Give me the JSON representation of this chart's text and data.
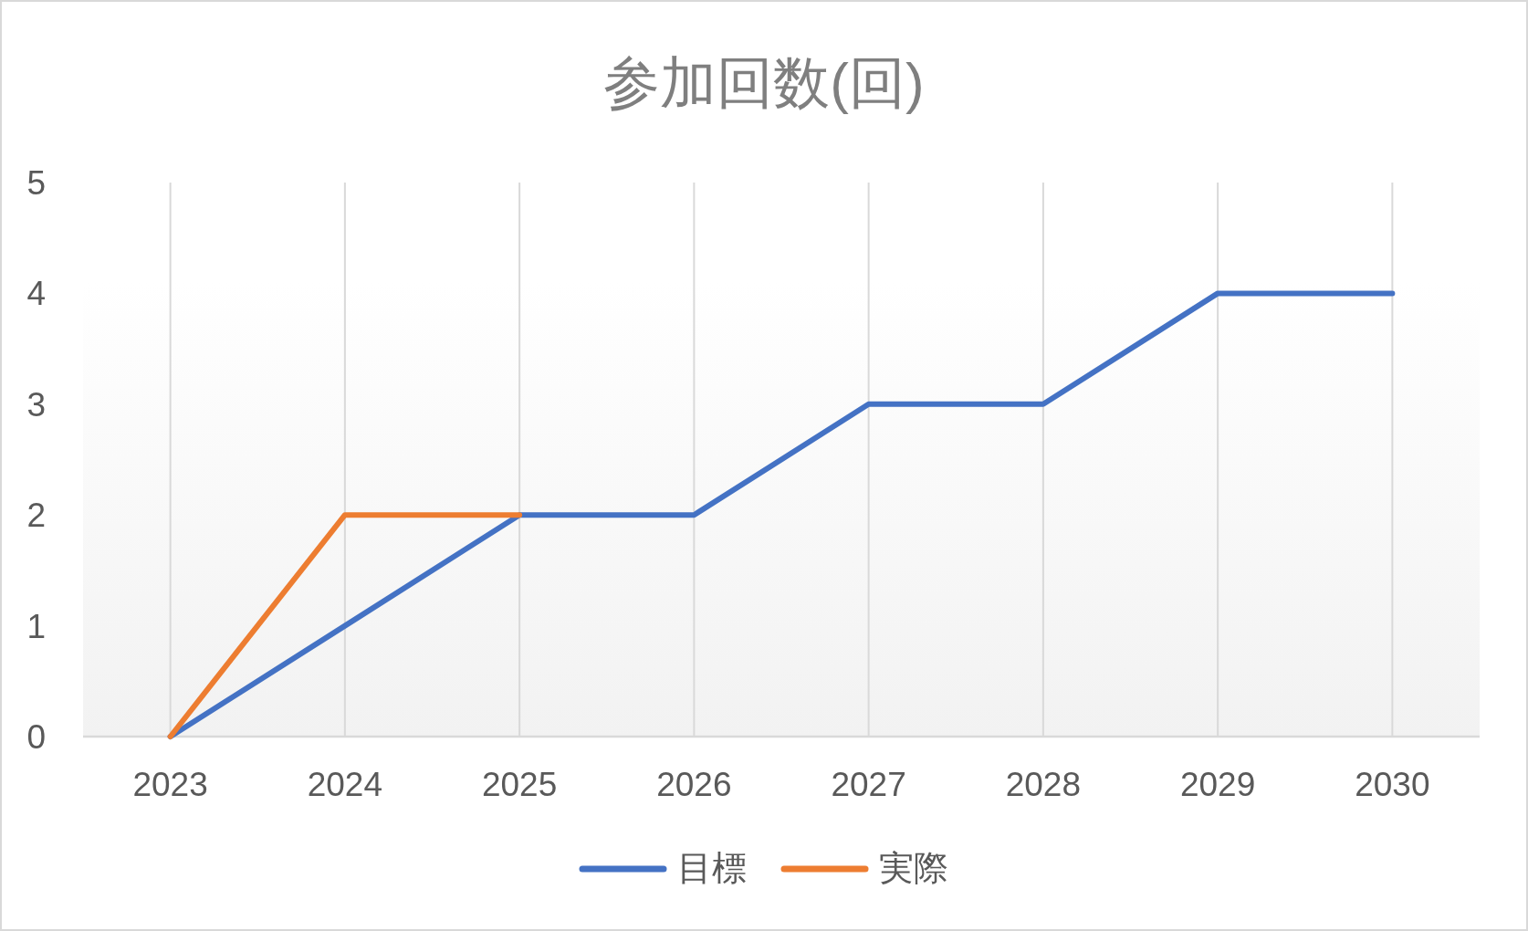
{
  "chart_data": {
    "type": "line",
    "title": "参加回数(回)",
    "categories": [
      "2023",
      "2024",
      "2025",
      "2026",
      "2027",
      "2028",
      "2029",
      "2030"
    ],
    "series": [
      {
        "name": "目標",
        "color": "#4472c4",
        "values": [
          0,
          1,
          2,
          2,
          3,
          3,
          4,
          4
        ]
      },
      {
        "name": "実際",
        "color": "#ed7d31",
        "values": [
          0,
          2,
          2,
          null,
          null,
          null,
          null,
          null
        ]
      }
    ],
    "ylim": [
      0,
      5
    ],
    "yticks": [
      0,
      1,
      2,
      3,
      4,
      5
    ],
    "grid": "x",
    "legend": "bottom",
    "line_style": "solid"
  }
}
